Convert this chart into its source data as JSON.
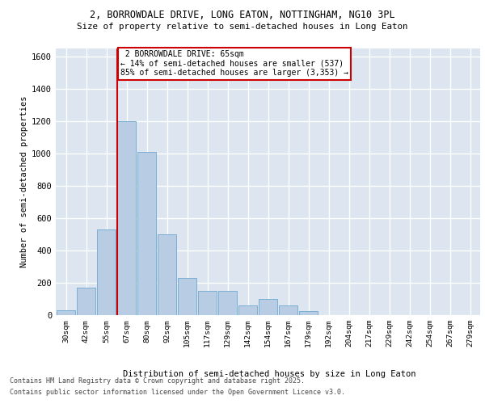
{
  "title1": "2, BORROWDALE DRIVE, LONG EATON, NOTTINGHAM, NG10 3PL",
  "title2": "Size of property relative to semi-detached houses in Long Eaton",
  "xlabel": "Distribution of semi-detached houses by size in Long Eaton",
  "ylabel": "Number of semi-detached properties",
  "footer1": "Contains HM Land Registry data © Crown copyright and database right 2025.",
  "footer2": "Contains public sector information licensed under the Open Government Licence v3.0.",
  "property_label": "2 BORROWDALE DRIVE: 65sqm",
  "pct_smaller": 14,
  "pct_larger": 85,
  "n_smaller": 537,
  "n_larger": 3353,
  "bin_labels": [
    "30sqm",
    "42sqm",
    "55sqm",
    "67sqm",
    "80sqm",
    "92sqm",
    "105sqm",
    "117sqm",
    "129sqm",
    "142sqm",
    "154sqm",
    "167sqm",
    "179sqm",
    "192sqm",
    "204sqm",
    "217sqm",
    "229sqm",
    "242sqm",
    "254sqm",
    "267sqm",
    "279sqm"
  ],
  "bar_values": [
    30,
    170,
    530,
    1200,
    1010,
    500,
    230,
    150,
    150,
    60,
    100,
    60,
    25,
    0,
    0,
    0,
    0,
    0,
    0,
    0,
    0
  ],
  "bar_color": "#b8cce4",
  "bar_edge_color": "#7aaed4",
  "vline_color": "#cc0000",
  "bg_color": "#dde6f0",
  "annotation_box_color": "#cc0000",
  "ylim": [
    0,
    1650
  ],
  "yticks": [
    0,
    200,
    400,
    600,
    800,
    1000,
    1200,
    1400,
    1600
  ],
  "vline_x": 2.55
}
